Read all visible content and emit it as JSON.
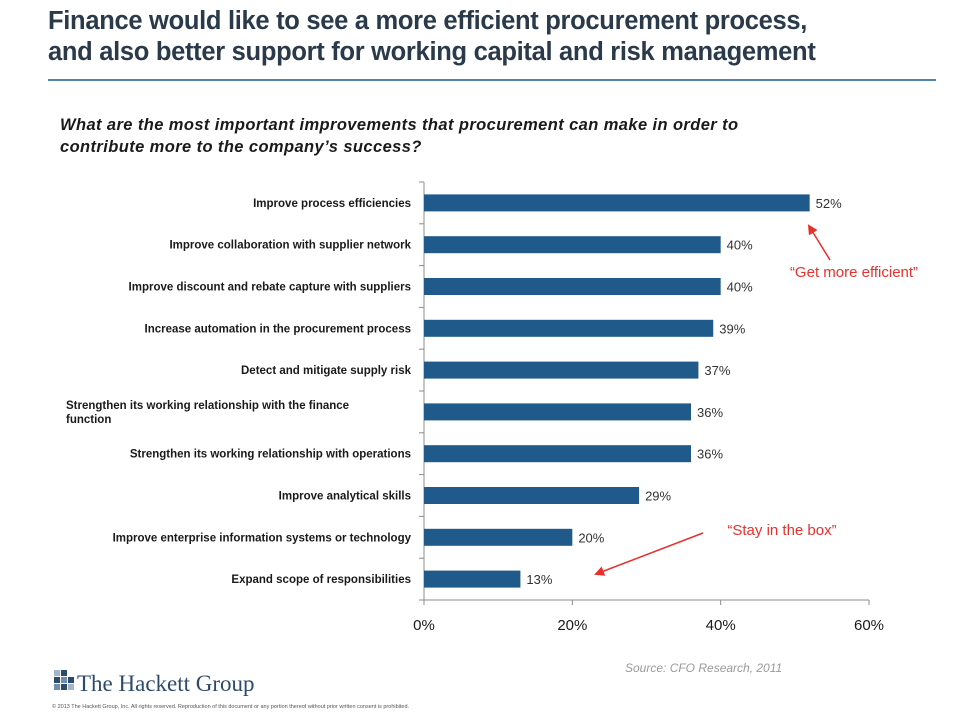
{
  "header": {
    "title_line1": "Finance would like to see a more efficient procurement process,",
    "title_line2": "and also better support for working capital and risk management"
  },
  "question_line1": "What are the most important improvements that procurement can make in order to",
  "question_line2": "contribute more to the company’s success?",
  "chart_data": {
    "type": "bar",
    "orientation": "horizontal",
    "categories": [
      "Improve process efficiencies",
      "Improve collaboration with supplier network",
      "Improve discount and rebate capture with suppliers",
      "Increase automation in the procurement process",
      "Detect and mitigate supply risk",
      "Strengthen its working relationship with the finance function",
      "Strengthen its working relationship with operations",
      "Improve analytical skills",
      "Improve enterprise information systems or technology",
      "Expand scope of responsibilities"
    ],
    "values": [
      52,
      40,
      40,
      39,
      37,
      36,
      36,
      29,
      20,
      13
    ],
    "value_labels": [
      "52%",
      "40%",
      "40%",
      "39%",
      "37%",
      "36%",
      "36%",
      "29%",
      "20%",
      "13%"
    ],
    "xlim": [
      0,
      60
    ],
    "xticks": [
      "0%",
      "20%",
      "40%",
      "60%"
    ],
    "bar_color": "#1f5a8a",
    "grid": false,
    "annotations": [
      {
        "text": "“Get more efficient”",
        "points_to": "Improve process efficiencies",
        "color": "#e8312c"
      },
      {
        "text": "“Stay in the box”",
        "points_to": "Expand scope of responsibilities",
        "color": "#e8312c"
      }
    ]
  },
  "source": "Source:  CFO Research, 2011",
  "logo": {
    "name": "The Hackett Group"
  },
  "copyright": "© 2013 The Hackett Group, Inc. All rights reserved. Reproduction of this document or any portion thereof without prior written consent is prohibited."
}
